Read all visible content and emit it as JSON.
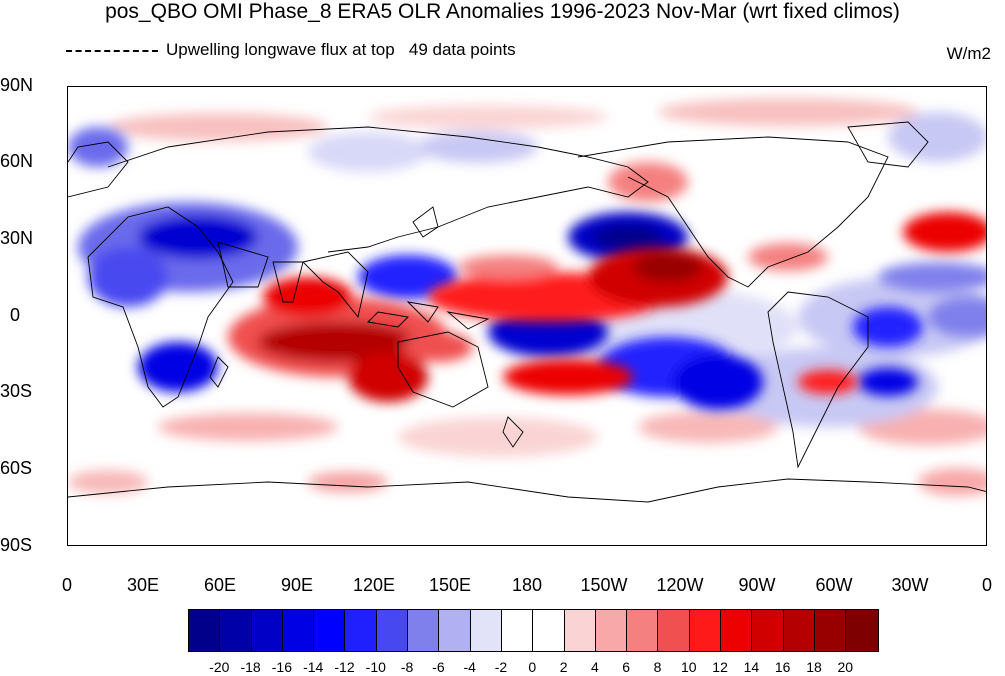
{
  "title": "pos_QBO OMI Phase_8 ERA5 OLR Anomalies 1996-2023 Nov-Mar (wrt fixed climos)",
  "subtitle_left": "Upwelling longwave flux at top",
  "subtitle_points": "49 data points",
  "units": "W/m2",
  "lat_labels": [
    "90N",
    "60N",
    "30N",
    "0",
    "30S",
    "60S",
    "90S"
  ],
  "lon_labels": [
    "0",
    "30E",
    "60E",
    "90E",
    "120E",
    "150E",
    "180",
    "150W",
    "120W",
    "90W",
    "60W",
    "30W",
    "0"
  ],
  "colorbar": {
    "labels": [
      "-20",
      "-18",
      "-16",
      "-14",
      "-12",
      "-10",
      "-8",
      "-6",
      "-4",
      "-2",
      "0",
      "2",
      "4",
      "6",
      "8",
      "10",
      "12",
      "14",
      "16",
      "18",
      "20"
    ],
    "colors": [
      "#00008a",
      "#0000a8",
      "#0000c6",
      "#0000e4",
      "#0000ff",
      "#2020ff",
      "#4848f0",
      "#8080ec",
      "#b0b0f2",
      "#e2e2f8",
      "#ffffff",
      "#ffffff",
      "#fad4d4",
      "#f8a8a8",
      "#f48080",
      "#f05050",
      "#ff1a1a",
      "#ec0000",
      "#d00000",
      "#b40000",
      "#980000",
      "#7e0000"
    ]
  },
  "map": {
    "projection": "cylindrical-equidistant",
    "lon_range": [
      0,
      360
    ],
    "lat_range": [
      -90,
      90
    ],
    "field": "OLR anomaly",
    "features": [
      "coastlines",
      "tick-marks"
    ]
  }
}
